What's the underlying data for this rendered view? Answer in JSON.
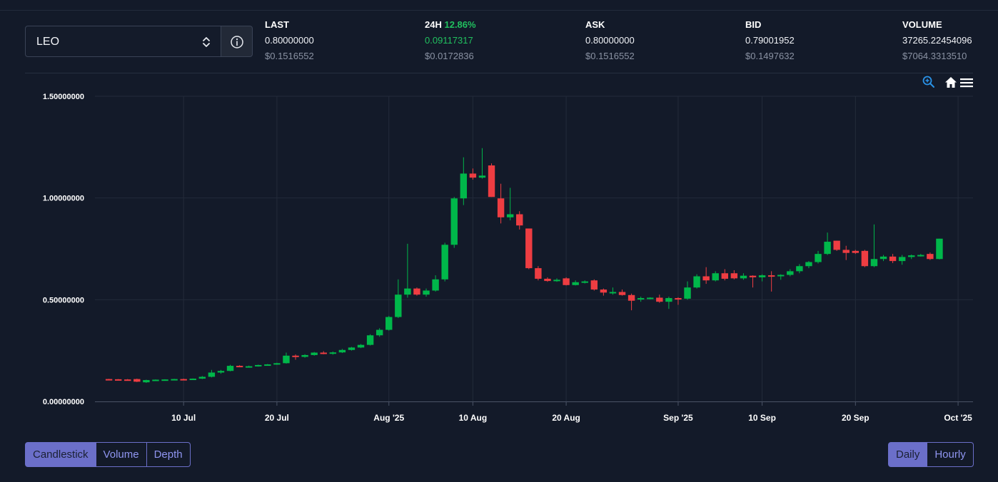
{
  "market": {
    "pair": "LEO",
    "info_icon": "info-circle-icon",
    "select_icon": "updown-chevron-icon"
  },
  "stats": {
    "last": {
      "label": "LAST",
      "value": "0.80000000",
      "usd": "$0.1516552"
    },
    "change24h": {
      "label": "24H",
      "percent": "12.86%",
      "value": "0.09117317",
      "usd": "$0.0172836"
    },
    "ask": {
      "label": "ASK",
      "value": "0.80000000",
      "usd": "$0.1516552"
    },
    "bid": {
      "label": "BID",
      "value": "0.79001952",
      "usd": "$0.1497632"
    },
    "volume": {
      "label": "VOLUME",
      "value": "37265.22454096",
      "usd": "$7064.3313510"
    }
  },
  "toolbar": {
    "zoom_icon": "zoom-in-icon",
    "home_icon": "home-icon",
    "menu_icon": "hamburger-menu-icon"
  },
  "colors": {
    "up": "#00b74a",
    "down": "#ee3d42",
    "accent": "#6b6fc9",
    "positive_text": "#21c05f",
    "background": "#131a29"
  },
  "chart_data": {
    "type": "candlestick",
    "ylim": [
      0,
      1.5
    ],
    "y_ticks": [
      "0.00000000",
      "0.50000000",
      "1.00000000",
      "1.50000000"
    ],
    "x_ticks": [
      {
        "label": "10 Jul",
        "day": 8
      },
      {
        "label": "20 Jul",
        "day": 18
      },
      {
        "label": "Aug '25",
        "day": 30
      },
      {
        "label": "10 Aug",
        "day": 39
      },
      {
        "label": "20 Aug",
        "day": 49
      },
      {
        "label": "Sep '25",
        "day": 61
      },
      {
        "label": "10 Sep",
        "day": 70
      },
      {
        "label": "20 Sep",
        "day": 80
      },
      {
        "label": "Oct '25",
        "day": 91
      }
    ],
    "x_range_days": [
      -1.5,
      92.6
    ],
    "candles": [
      [
        0.11,
        0.111,
        0.108,
        0.109
      ],
      [
        0.109,
        0.11,
        0.107,
        0.108
      ],
      [
        0.108,
        0.11,
        0.104,
        0.106
      ],
      [
        0.11,
        0.112,
        0.095,
        0.097
      ],
      [
        0.094,
        0.107,
        0.091,
        0.105
      ],
      [
        0.105,
        0.108,
        0.103,
        0.107
      ],
      [
        0.107,
        0.109,
        0.105,
        0.108
      ],
      [
        0.108,
        0.111,
        0.106,
        0.11
      ],
      [
        0.11,
        0.112,
        0.108,
        0.109
      ],
      [
        0.109,
        0.113,
        0.107,
        0.112
      ],
      [
        0.112,
        0.125,
        0.11,
        0.121
      ],
      [
        0.121,
        0.155,
        0.118,
        0.142
      ],
      [
        0.142,
        0.155,
        0.136,
        0.15
      ],
      [
        0.15,
        0.18,
        0.148,
        0.175
      ],
      [
        0.175,
        0.178,
        0.169,
        0.171
      ],
      [
        0.171,
        0.176,
        0.168,
        0.173
      ],
      [
        0.173,
        0.181,
        0.171,
        0.179
      ],
      [
        0.179,
        0.184,
        0.176,
        0.182
      ],
      [
        0.182,
        0.19,
        0.18,
        0.188
      ],
      [
        0.188,
        0.24,
        0.186,
        0.225
      ],
      [
        0.225,
        0.231,
        0.205,
        0.219
      ],
      [
        0.219,
        0.232,
        0.215,
        0.228
      ],
      [
        0.228,
        0.243,
        0.225,
        0.24
      ],
      [
        0.24,
        0.247,
        0.232,
        0.235
      ],
      [
        0.235,
        0.245,
        0.23,
        0.241
      ],
      [
        0.241,
        0.258,
        0.238,
        0.253
      ],
      [
        0.253,
        0.268,
        0.25,
        0.265
      ],
      [
        0.265,
        0.282,
        0.262,
        0.278
      ],
      [
        0.278,
        0.33,
        0.275,
        0.325
      ],
      [
        0.325,
        0.36,
        0.318,
        0.352
      ],
      [
        0.352,
        0.42,
        0.348,
        0.415
      ],
      [
        0.415,
        0.6,
        0.41,
        0.525
      ],
      [
        0.525,
        0.775,
        0.51,
        0.555
      ],
      [
        0.555,
        0.56,
        0.52,
        0.525
      ],
      [
        0.525,
        0.555,
        0.515,
        0.545
      ],
      [
        0.545,
        0.62,
        0.54,
        0.6
      ],
      [
        0.6,
        0.78,
        0.59,
        0.77
      ],
      [
        0.77,
        1.005,
        0.755,
        0.998
      ],
      [
        0.998,
        1.2,
        0.965,
        1.12
      ],
      [
        1.12,
        1.145,
        1.09,
        1.1
      ],
      [
        1.1,
        1.245,
        1.095,
        1.11
      ],
      [
        1.16,
        1.17,
        1.005,
        1.005
      ],
      [
        0.998,
        1.07,
        0.875,
        0.905
      ],
      [
        0.905,
        1.05,
        0.89,
        0.92
      ],
      [
        0.92,
        0.935,
        0.845,
        0.865
      ],
      [
        0.85,
        0.85,
        0.65,
        0.655
      ],
      [
        0.655,
        0.665,
        0.595,
        0.603
      ],
      [
        0.603,
        0.61,
        0.588,
        0.592
      ],
      [
        0.592,
        0.605,
        0.588,
        0.598
      ],
      [
        0.605,
        0.61,
        0.57,
        0.572
      ],
      [
        0.572,
        0.595,
        0.57,
        0.586
      ],
      [
        0.586,
        0.595,
        0.58,
        0.59
      ],
      [
        0.595,
        0.6,
        0.545,
        0.55
      ],
      [
        0.55,
        0.555,
        0.52,
        0.535
      ],
      [
        0.535,
        0.56,
        0.525,
        0.538
      ],
      [
        0.538,
        0.55,
        0.52,
        0.523
      ],
      [
        0.523,
        0.53,
        0.448,
        0.495
      ],
      [
        0.505,
        0.515,
        0.49,
        0.508
      ],
      [
        0.508,
        0.512,
        0.502,
        0.51
      ],
      [
        0.51,
        0.525,
        0.485,
        0.49
      ],
      [
        0.49,
        0.515,
        0.455,
        0.508
      ],
      [
        0.508,
        0.512,
        0.475,
        0.505
      ],
      [
        0.505,
        0.59,
        0.5,
        0.56
      ],
      [
        0.56,
        0.625,
        0.555,
        0.615
      ],
      [
        0.615,
        0.66,
        0.578,
        0.595
      ],
      [
        0.595,
        0.64,
        0.59,
        0.63
      ],
      [
        0.63,
        0.65,
        0.595,
        0.603
      ],
      [
        0.63,
        0.645,
        0.6,
        0.605
      ],
      [
        0.605,
        0.63,
        0.598,
        0.618
      ],
      [
        0.618,
        0.62,
        0.56,
        0.61
      ],
      [
        0.61,
        0.625,
        0.59,
        0.62
      ],
      [
        0.62,
        0.64,
        0.54,
        0.618
      ],
      [
        0.618,
        0.625,
        0.598,
        0.622
      ],
      [
        0.622,
        0.65,
        0.615,
        0.64
      ],
      [
        0.64,
        0.675,
        0.63,
        0.665
      ],
      [
        0.665,
        0.69,
        0.655,
        0.685
      ],
      [
        0.685,
        0.74,
        0.678,
        0.725
      ],
      [
        0.725,
        0.83,
        0.72,
        0.785
      ],
      [
        0.79,
        0.79,
        0.74,
        0.745
      ],
      [
        0.745,
        0.765,
        0.695,
        0.73
      ],
      [
        0.74,
        0.745,
        0.725,
        0.73
      ],
      [
        0.74,
        0.745,
        0.66,
        0.665
      ],
      [
        0.665,
        0.87,
        0.66,
        0.7
      ],
      [
        0.7,
        0.72,
        0.69,
        0.712
      ],
      [
        0.712,
        0.725,
        0.68,
        0.69
      ],
      [
        0.69,
        0.72,
        0.672,
        0.71
      ],
      [
        0.71,
        0.722,
        0.7,
        0.718
      ],
      [
        0.718,
        0.725,
        0.712,
        0.72
      ],
      [
        0.725,
        0.732,
        0.695,
        0.7
      ],
      [
        0.7,
        0.8,
        0.698,
        0.8
      ]
    ],
    "candle_format": [
      "open",
      "high",
      "low",
      "close"
    ]
  },
  "chart_type_tabs": [
    {
      "label": "Candlestick",
      "active": true
    },
    {
      "label": "Volume",
      "active": false
    },
    {
      "label": "Depth",
      "active": false
    }
  ],
  "interval_tabs": [
    {
      "label": "Daily",
      "active": true
    },
    {
      "label": "Hourly",
      "active": false
    }
  ]
}
